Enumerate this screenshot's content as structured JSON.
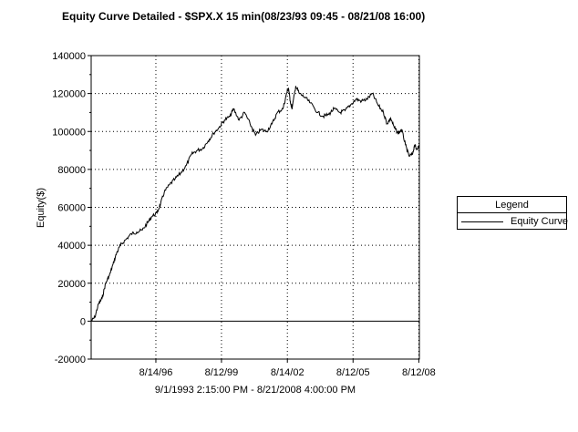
{
  "chart_data": {
    "type": "line",
    "title": "Equity Curve Detailed - $SPX.X 15 min(08/23/93 09:45 - 08/21/08 16:00)",
    "xlabel": "9/1/1993 2:15:00 PM - 8/21/2008 4:00:00 PM",
    "ylabel": "Equity($)",
    "x_range": [
      "1993-09-01",
      "2008-08-21"
    ],
    "ylim": [
      -20000,
      140000
    ],
    "y_ticks": [
      "140000",
      "120000",
      "100000",
      "80000",
      "60000",
      "40000",
      "20000",
      "0",
      "-20000"
    ],
    "x_ticks": [
      {
        "date": "1996-08-14",
        "label": "8/14/96"
      },
      {
        "date": "1999-08-12",
        "label": "8/12/99"
      },
      {
        "date": "2002-08-14",
        "label": "8/14/02"
      },
      {
        "date": "2005-08-12",
        "label": "8/12/05"
      },
      {
        "date": "2008-08-12",
        "label": "8/12/08"
      }
    ],
    "grid": true,
    "legend": {
      "title": "Legend",
      "position": "right"
    },
    "series": [
      {
        "name": "Equity Curve",
        "color": "#000000",
        "points": [
          [
            "1993-09-01",
            0
          ],
          [
            "1993-11-01",
            2000
          ],
          [
            "1994-01-01",
            9000
          ],
          [
            "1994-03-01",
            12000
          ],
          [
            "1994-05-01",
            20000
          ],
          [
            "1994-07-01",
            24000
          ],
          [
            "1994-09-01",
            30000
          ],
          [
            "1994-11-01",
            36000
          ],
          [
            "1995-01-01",
            40000
          ],
          [
            "1995-04-01",
            43000
          ],
          [
            "1995-07-01",
            46000
          ],
          [
            "1995-10-01",
            47000
          ],
          [
            "1996-01-01",
            48000
          ],
          [
            "1996-04-01",
            52000
          ],
          [
            "1996-06-01",
            55000
          ],
          [
            "1996-09-01",
            57000
          ],
          [
            "1996-11-01",
            62000
          ],
          [
            "1997-01-01",
            68000
          ],
          [
            "1997-04-01",
            72000
          ],
          [
            "1997-07-01",
            75000
          ],
          [
            "1997-10-01",
            78000
          ],
          [
            "1998-01-01",
            82000
          ],
          [
            "1998-04-01",
            88000
          ],
          [
            "1998-07-01",
            90000
          ],
          [
            "1998-10-01",
            91000
          ],
          [
            "1999-01-01",
            95000
          ],
          [
            "1999-04-01",
            99000
          ],
          [
            "1999-07-01",
            102000
          ],
          [
            "1999-10-01",
            106000
          ],
          [
            "2000-01-01",
            108000
          ],
          [
            "2000-03-01",
            112000
          ],
          [
            "2000-06-01",
            106000
          ],
          [
            "2000-09-01",
            110000
          ],
          [
            "2000-12-01",
            104000
          ],
          [
            "2001-03-01",
            98000
          ],
          [
            "2001-06-01",
            101000
          ],
          [
            "2001-09-01",
            100000
          ],
          [
            "2001-12-01",
            104000
          ],
          [
            "2002-03-01",
            110000
          ],
          [
            "2002-06-01",
            112000
          ],
          [
            "2002-08-01",
            120000
          ],
          [
            "2002-09-01",
            123000
          ],
          [
            "2002-10-01",
            116000
          ],
          [
            "2002-11-01",
            112000
          ],
          [
            "2003-01-01",
            124000
          ],
          [
            "2003-03-01",
            120000
          ],
          [
            "2003-06-01",
            118000
          ],
          [
            "2003-09-01",
            115000
          ],
          [
            "2004-01-01",
            110000
          ],
          [
            "2004-04-01",
            108000
          ],
          [
            "2004-07-01",
            109000
          ],
          [
            "2004-10-01",
            112000
          ],
          [
            "2005-01-01",
            110000
          ],
          [
            "2005-04-01",
            111000
          ],
          [
            "2005-07-01",
            114000
          ],
          [
            "2005-10-01",
            117000
          ],
          [
            "2006-01-01",
            116000
          ],
          [
            "2006-04-01",
            117000
          ],
          [
            "2006-07-01",
            120000
          ],
          [
            "2006-10-01",
            114000
          ],
          [
            "2007-01-01",
            110000
          ],
          [
            "2007-03-01",
            104000
          ],
          [
            "2007-05-01",
            107000
          ],
          [
            "2007-07-01",
            102000
          ],
          [
            "2007-09-01",
            99000
          ],
          [
            "2007-11-01",
            101000
          ],
          [
            "2008-01-01",
            93000
          ],
          [
            "2008-03-01",
            87000
          ],
          [
            "2008-05-01",
            88000
          ],
          [
            "2008-06-01",
            93000
          ],
          [
            "2008-07-01",
            91000
          ],
          [
            "2008-08-21",
            92000
          ]
        ]
      }
    ]
  }
}
